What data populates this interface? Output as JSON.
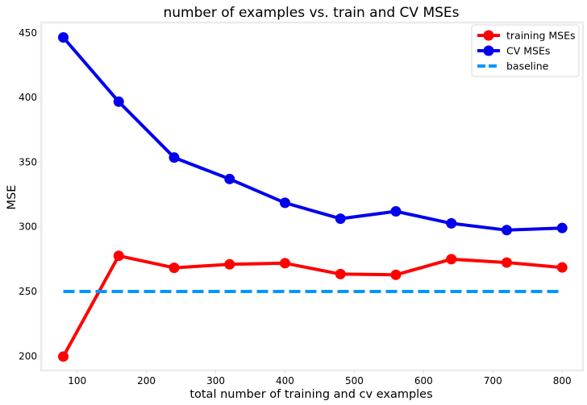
{
  "chart_data": {
    "type": "line",
    "title": "number of examples vs. train and CV MSEs",
    "xlabel": "total number of training and cv examples",
    "ylabel": "MSE",
    "xlim": [
      48,
      830
    ],
    "ylim": [
      189,
      458
    ],
    "xticks": [
      100,
      200,
      300,
      400,
      500,
      600,
      700,
      800
    ],
    "yticks": [
      200,
      250,
      300,
      350,
      400,
      450
    ],
    "x": [
      80,
      160,
      240,
      320,
      400,
      480,
      560,
      640,
      720,
      800
    ],
    "series": [
      {
        "name": "training MSEs",
        "color": "#ff0000",
        "marker": "circle",
        "style": "solid",
        "values": [
          199.7,
          277.6,
          268.3,
          271.0,
          271.9,
          263.5,
          262.9,
          275.0,
          272.4,
          268.6
        ]
      },
      {
        "name": "CV MSEs",
        "color": "#0000ee",
        "marker": "circle",
        "style": "solid",
        "values": [
          446.5,
          396.8,
          353.6,
          337.0,
          318.6,
          306.3,
          312.0,
          302.7,
          297.5,
          299.1
        ]
      },
      {
        "name": "baseline",
        "color": "#0096ff",
        "marker": "none",
        "style": "dashed",
        "values": [
          250,
          250,
          250,
          250,
          250,
          250,
          250,
          250,
          250,
          250
        ]
      }
    ],
    "grid": false,
    "legend_position": "top-right"
  }
}
